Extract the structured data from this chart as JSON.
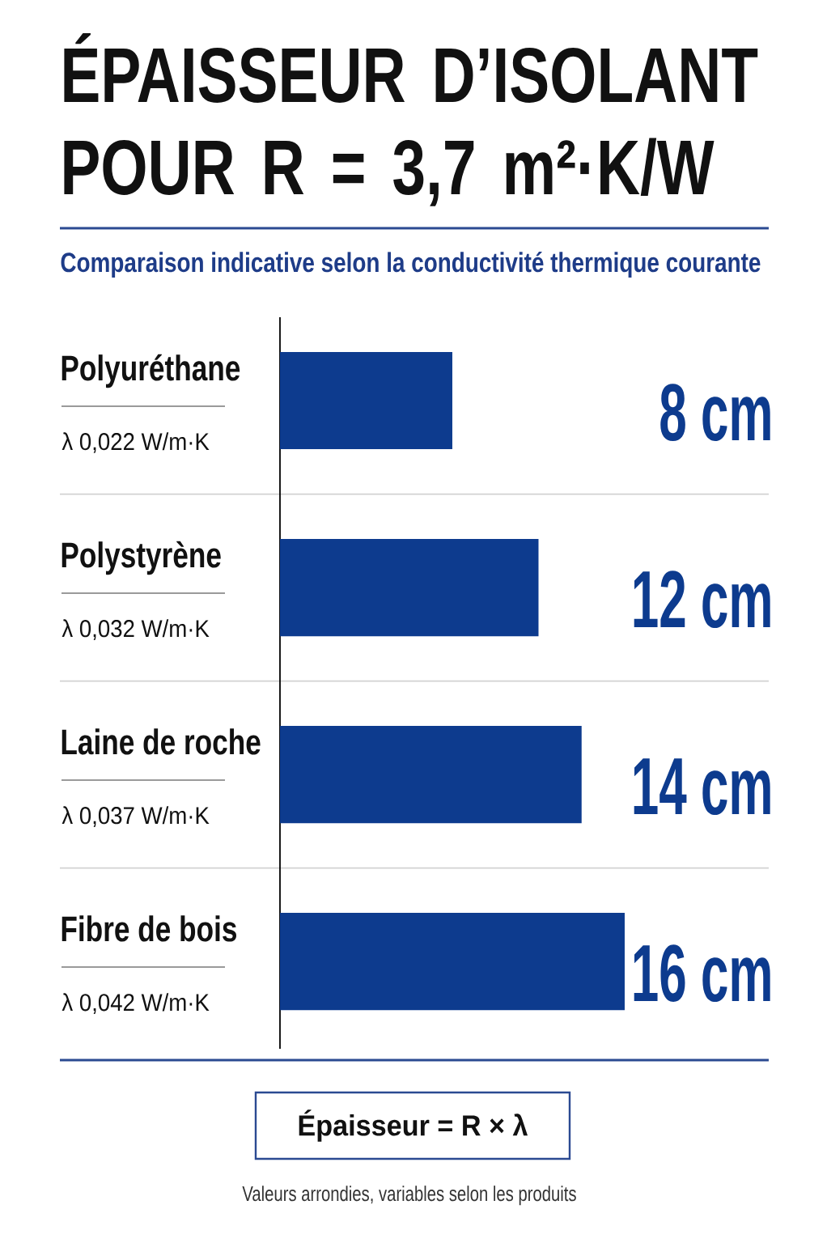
{
  "chart_data": {
    "type": "bar",
    "orientation": "horizontal",
    "title": "ÉPAISSEUR D’ISOLANT POUR R = 3,7 m²·K/W",
    "subtitle": "Comparaison indicative selon la conductivité thermique courante",
    "categories": [
      "Polyuréthane",
      "Polystyrène",
      "Laine de roche",
      "Fibre de bois"
    ],
    "values": [
      8,
      12,
      14,
      16
    ],
    "color": "#0d3b8e",
    "value_labels": [
      "8 cm",
      "12 cm",
      "14 cm",
      "16 cm"
    ],
    "xlim": [
      0,
      16
    ],
    "grid": "y",
    "tick_labels": "y",
    "annotations": [
      "λ 0,022 W/m·K",
      "λ 0,032 W/m·K",
      "λ 0,037 W/m·K",
      "λ 0,042 W/m·K",
      "Épaisseur = R × λ",
      "Valeurs arrondies, variables selon les produits"
    ]
  }
}
